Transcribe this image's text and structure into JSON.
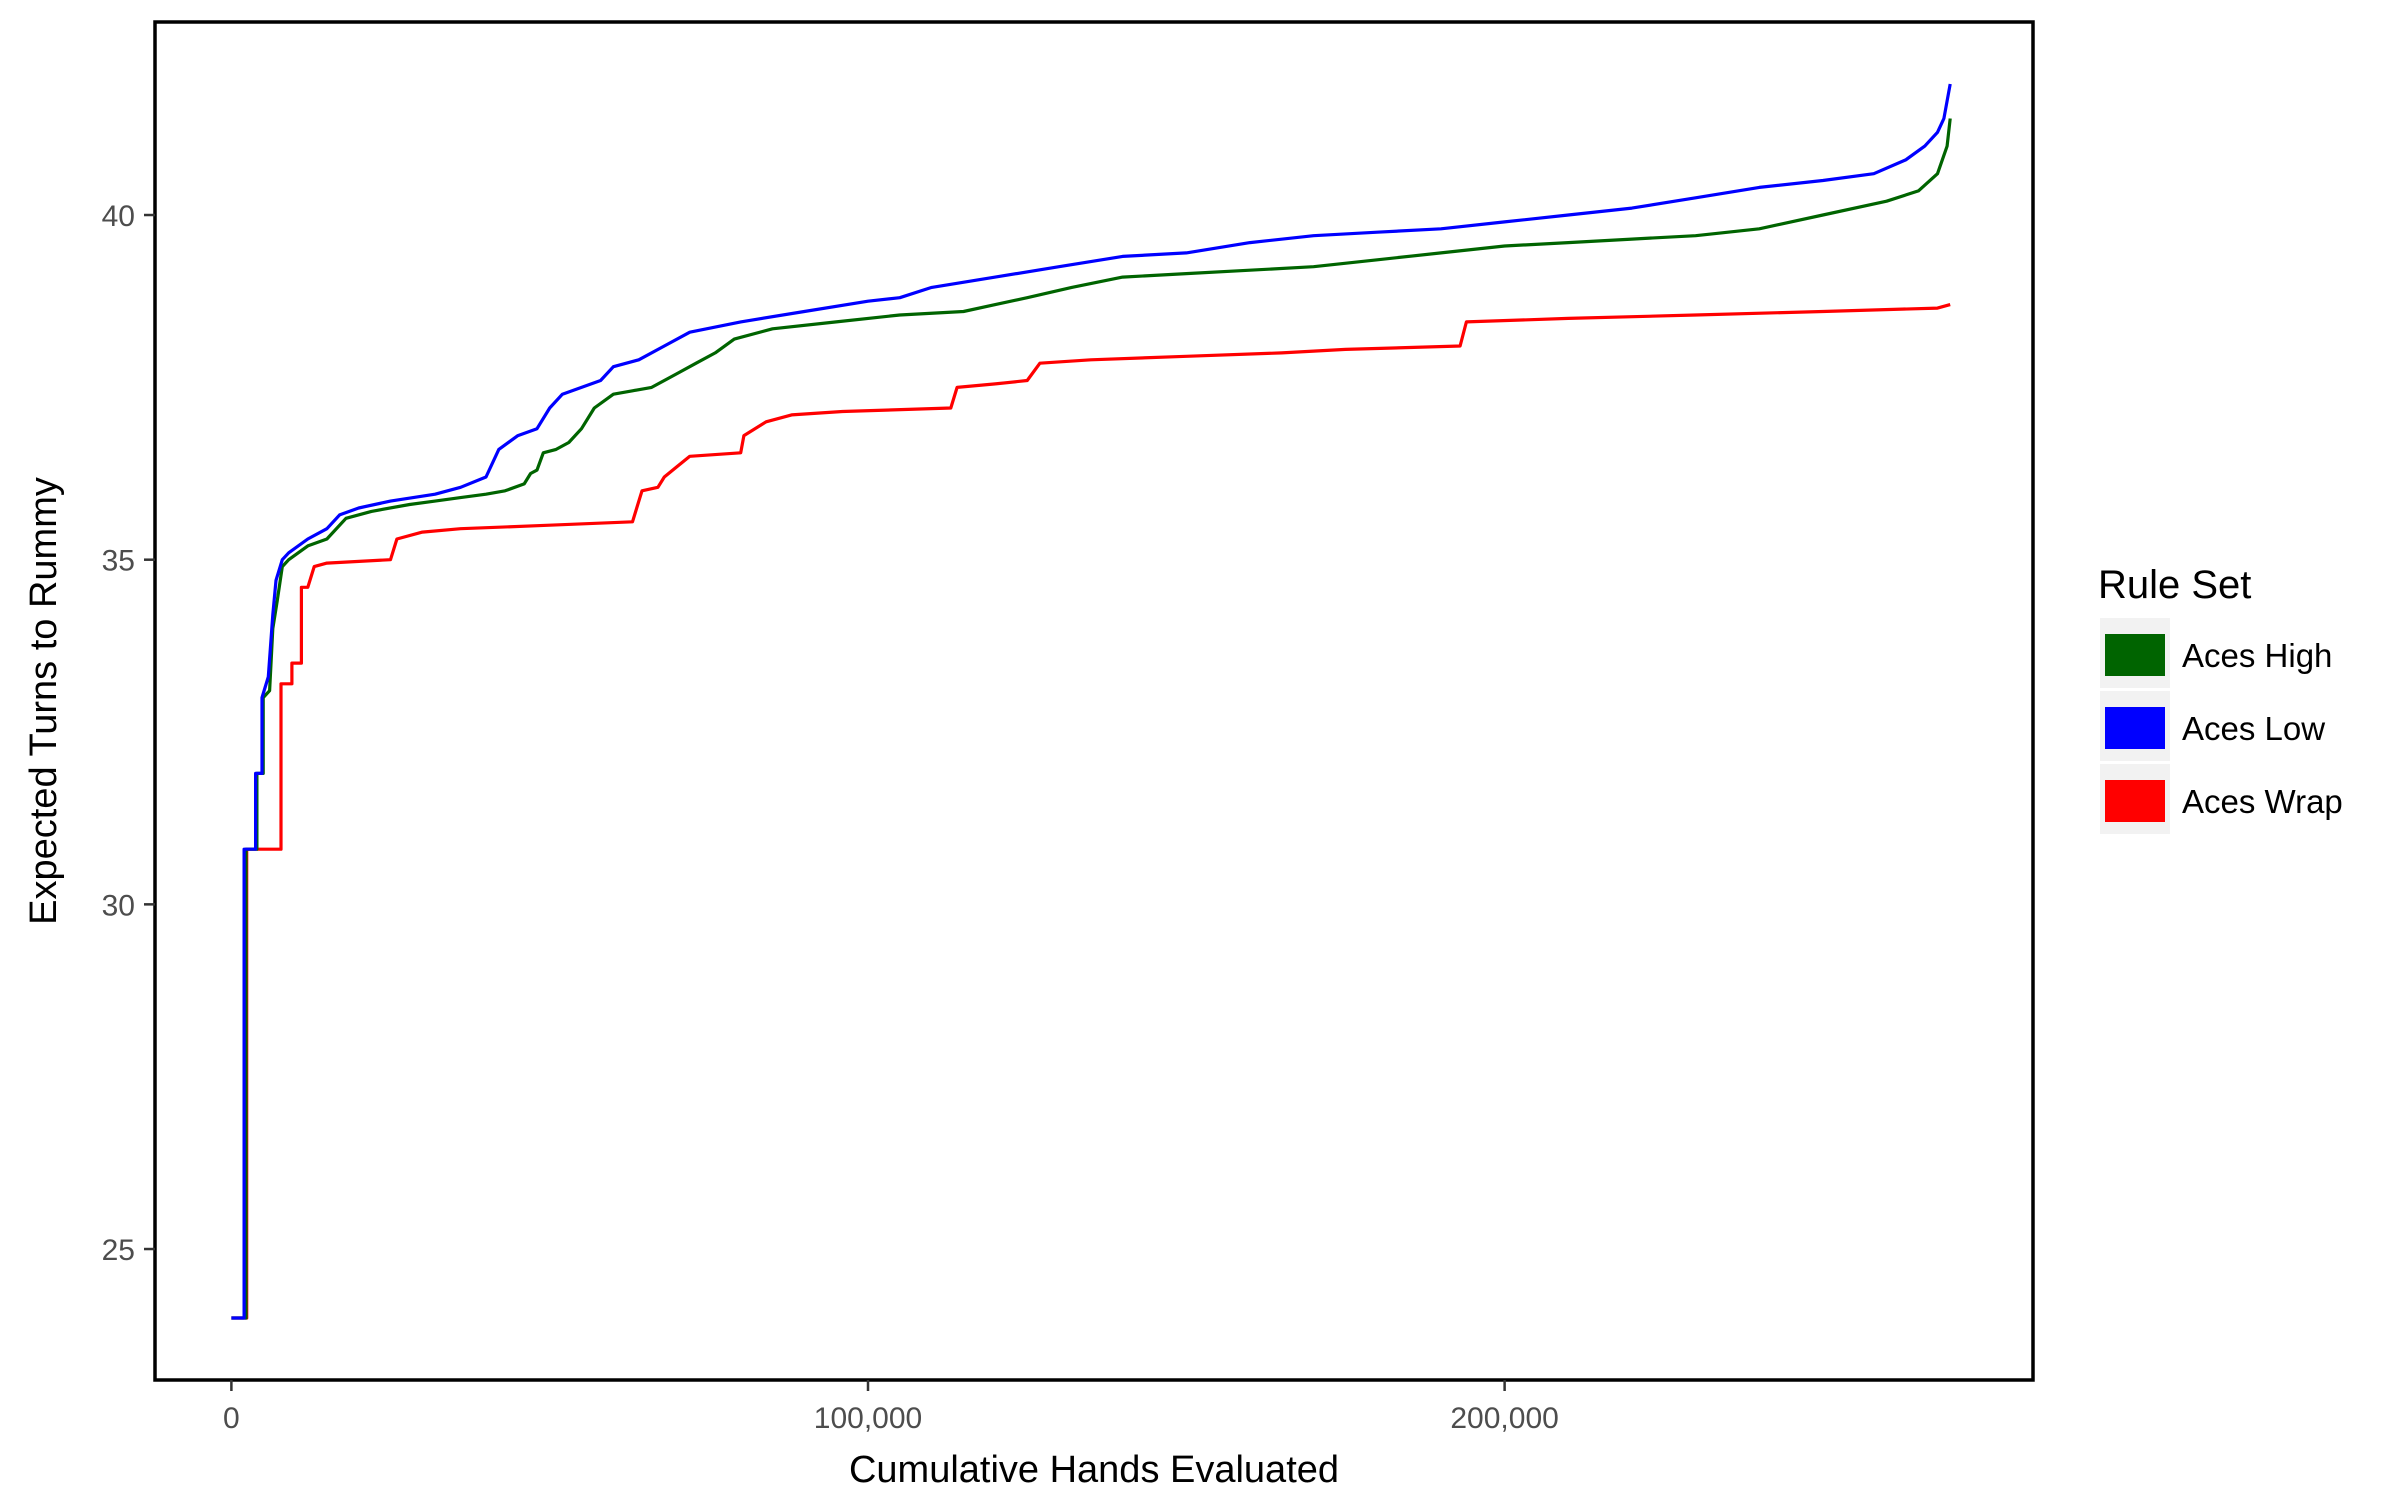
{
  "chart_data": {
    "type": "line",
    "title": "",
    "xlabel": "Cumulative Hands Evaluated",
    "ylabel": "Expected Turns to Rummy",
    "xlim": [
      -12000,
      283000
    ],
    "ylim": [
      23.1,
      42.8
    ],
    "x_ticks": [
      0,
      100000,
      200000
    ],
    "x_tick_labels": [
      "0",
      "100,000",
      "200,000"
    ],
    "y_ticks": [
      25,
      30,
      35,
      40
    ],
    "y_tick_labels": [
      "25",
      "30",
      "35",
      "40"
    ],
    "grid": false,
    "legend": {
      "title": "Rule Set",
      "position": "right"
    },
    "series": [
      {
        "name": "Aces High",
        "color": "#006400",
        "points": [
          [
            0,
            24
          ],
          [
            2300,
            24
          ],
          [
            2300,
            30.8
          ],
          [
            4000,
            30.8
          ],
          [
            4000,
            31.9
          ],
          [
            5000,
            31.9
          ],
          [
            5000,
            33.0
          ],
          [
            6000,
            33.1
          ],
          [
            6500,
            34.0
          ],
          [
            7200,
            34.4
          ],
          [
            8000,
            34.9
          ],
          [
            9000,
            35.0
          ],
          [
            12000,
            35.2
          ],
          [
            15000,
            35.3
          ],
          [
            18000,
            35.6
          ],
          [
            22000,
            35.7
          ],
          [
            28000,
            35.8
          ],
          [
            32000,
            35.85
          ],
          [
            36000,
            35.9
          ],
          [
            40000,
            35.95
          ],
          [
            43000,
            36.0
          ],
          [
            46000,
            36.1
          ],
          [
            47000,
            36.25
          ],
          [
            48000,
            36.3
          ],
          [
            49000,
            36.55
          ],
          [
            51000,
            36.6
          ],
          [
            53000,
            36.7
          ],
          [
            55000,
            36.9
          ],
          [
            57000,
            37.2
          ],
          [
            60000,
            37.4
          ],
          [
            63000,
            37.45
          ],
          [
            66000,
            37.5
          ],
          [
            70000,
            37.7
          ],
          [
            73000,
            37.85
          ],
          [
            76000,
            38.0
          ],
          [
            79000,
            38.2
          ],
          [
            85000,
            38.35
          ],
          [
            95000,
            38.45
          ],
          [
            105000,
            38.55
          ],
          [
            115000,
            38.6
          ],
          [
            120000,
            38.7
          ],
          [
            125000,
            38.8
          ],
          [
            132000,
            38.95
          ],
          [
            140000,
            39.1
          ],
          [
            150000,
            39.15
          ],
          [
            160000,
            39.2
          ],
          [
            170000,
            39.25
          ],
          [
            180000,
            39.35
          ],
          [
            190000,
            39.45
          ],
          [
            200000,
            39.55
          ],
          [
            210000,
            39.6
          ],
          [
            220000,
            39.65
          ],
          [
            230000,
            39.7
          ],
          [
            240000,
            39.8
          ],
          [
            250000,
            40.0
          ],
          [
            260000,
            40.2
          ],
          [
            265000,
            40.35
          ],
          [
            268000,
            40.6
          ],
          [
            269500,
            41.0
          ],
          [
            270000,
            41.4
          ]
        ]
      },
      {
        "name": "Aces Low",
        "color": "#0000ff",
        "points": [
          [
            0,
            24
          ],
          [
            2000,
            24
          ],
          [
            2000,
            30.8
          ],
          [
            3800,
            30.8
          ],
          [
            3800,
            31.9
          ],
          [
            4800,
            31.9
          ],
          [
            4800,
            33.0
          ],
          [
            5800,
            33.3
          ],
          [
            6500,
            34.2
          ],
          [
            7000,
            34.7
          ],
          [
            8000,
            35.0
          ],
          [
            9000,
            35.1
          ],
          [
            12000,
            35.3
          ],
          [
            15000,
            35.45
          ],
          [
            17000,
            35.65
          ],
          [
            20000,
            35.75
          ],
          [
            25000,
            35.85
          ],
          [
            32000,
            35.95
          ],
          [
            36000,
            36.05
          ],
          [
            40000,
            36.2
          ],
          [
            42000,
            36.6
          ],
          [
            45000,
            36.8
          ],
          [
            48000,
            36.9
          ],
          [
            50000,
            37.2
          ],
          [
            52000,
            37.4
          ],
          [
            55000,
            37.5
          ],
          [
            58000,
            37.6
          ],
          [
            60000,
            37.8
          ],
          [
            64000,
            37.9
          ],
          [
            68000,
            38.1
          ],
          [
            72000,
            38.3
          ],
          [
            80000,
            38.45
          ],
          [
            90000,
            38.6
          ],
          [
            100000,
            38.75
          ],
          [
            105000,
            38.8
          ],
          [
            110000,
            38.95
          ],
          [
            120000,
            39.1
          ],
          [
            130000,
            39.25
          ],
          [
            140000,
            39.4
          ],
          [
            150000,
            39.45
          ],
          [
            160000,
            39.6
          ],
          [
            170000,
            39.7
          ],
          [
            180000,
            39.75
          ],
          [
            190000,
            39.8
          ],
          [
            200000,
            39.9
          ],
          [
            210000,
            40.0
          ],
          [
            220000,
            40.1
          ],
          [
            230000,
            40.25
          ],
          [
            240000,
            40.4
          ],
          [
            250000,
            40.5
          ],
          [
            258000,
            40.6
          ],
          [
            263000,
            40.8
          ],
          [
            266000,
            41.0
          ],
          [
            268000,
            41.2
          ],
          [
            269000,
            41.4
          ],
          [
            270000,
            41.9
          ]
        ]
      },
      {
        "name": "Aces Wrap",
        "color": "#ff0000",
        "points": [
          [
            0,
            24
          ],
          [
            2400,
            24
          ],
          [
            2400,
            30.8
          ],
          [
            7800,
            30.8
          ],
          [
            7800,
            33.2
          ],
          [
            9500,
            33.2
          ],
          [
            9500,
            33.5
          ],
          [
            11000,
            33.5
          ],
          [
            11000,
            34.6
          ],
          [
            12000,
            34.6
          ],
          [
            13000,
            34.9
          ],
          [
            15000,
            34.95
          ],
          [
            25000,
            35.0
          ],
          [
            26000,
            35.3
          ],
          [
            30000,
            35.4
          ],
          [
            36000,
            35.45
          ],
          [
            50000,
            35.5
          ],
          [
            63000,
            35.55
          ],
          [
            64500,
            36.0
          ],
          [
            67000,
            36.05
          ],
          [
            68000,
            36.2
          ],
          [
            70000,
            36.35
          ],
          [
            72000,
            36.5
          ],
          [
            80000,
            36.55
          ],
          [
            80500,
            36.8
          ],
          [
            84000,
            37.0
          ],
          [
            88000,
            37.1
          ],
          [
            96000,
            37.15
          ],
          [
            113000,
            37.2
          ],
          [
            114000,
            37.5
          ],
          [
            120000,
            37.55
          ],
          [
            125000,
            37.6
          ],
          [
            127000,
            37.85
          ],
          [
            135000,
            37.9
          ],
          [
            150000,
            37.95
          ],
          [
            165000,
            38.0
          ],
          [
            175000,
            38.05
          ],
          [
            193000,
            38.1
          ],
          [
            194000,
            38.45
          ],
          [
            210000,
            38.5
          ],
          [
            230000,
            38.55
          ],
          [
            250000,
            38.6
          ],
          [
            268000,
            38.65
          ],
          [
            270000,
            38.7
          ]
        ]
      }
    ]
  }
}
